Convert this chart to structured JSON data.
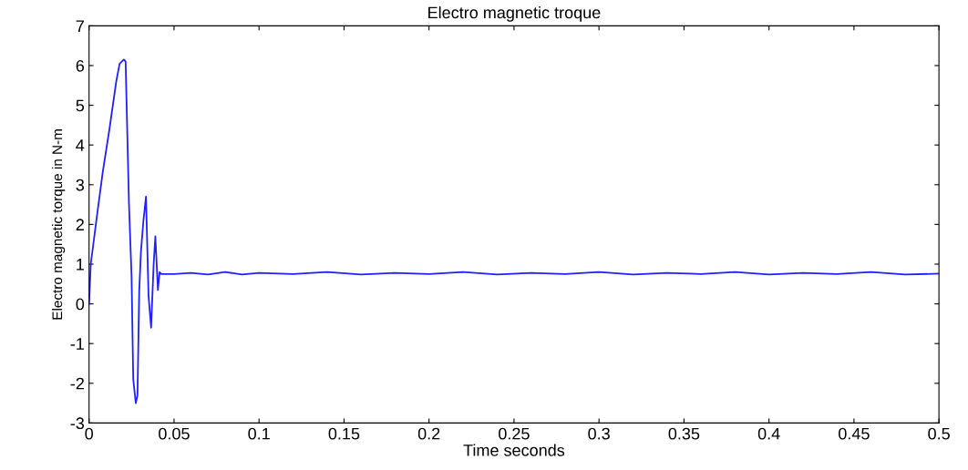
{
  "chart_data": {
    "type": "line",
    "title": "Electro magnetic troque",
    "xlabel": "Time seconds",
    "ylabel": "Electro magnetic torque in N-m",
    "xlim": [
      0,
      0.5
    ],
    "ylim": [
      -3,
      7
    ],
    "xticks": [
      0,
      0.05,
      0.1,
      0.15,
      0.2,
      0.25,
      0.3,
      0.35,
      0.4,
      0.45,
      0.5
    ],
    "yticks": [
      -3,
      -2,
      -1,
      0,
      1,
      2,
      3,
      4,
      5,
      6,
      7
    ],
    "marker": "none",
    "line_style": "solid",
    "series": [
      {
        "color": "#1f1fff",
        "x": [
          0,
          0.001,
          0.004,
          0.008,
          0.012,
          0.016,
          0.018,
          0.0205,
          0.0215,
          0.0235,
          0.025,
          0.026,
          0.0275,
          0.0285,
          0.0295,
          0.0305,
          0.032,
          0.0335,
          0.035,
          0.0365,
          0.038,
          0.039,
          0.0405,
          0.0415,
          0.0425,
          0.05,
          0.06,
          0.07,
          0.08,
          0.09,
          0.1,
          0.12,
          0.14,
          0.16,
          0.18,
          0.2,
          0.22,
          0.24,
          0.26,
          0.28,
          0.3,
          0.32,
          0.34,
          0.36,
          0.38,
          0.4,
          0.42,
          0.44,
          0.46,
          0.48,
          0.5
        ],
        "values": [
          0,
          1.0,
          2.0,
          3.3,
          4.4,
          5.6,
          6.05,
          6.15,
          6.1,
          2.5,
          0.7,
          -1.9,
          -2.5,
          -2.3,
          0.3,
          1.3,
          2.1,
          2.7,
          0.2,
          -0.6,
          1.0,
          1.7,
          0.35,
          0.8,
          0.75,
          0.75,
          0.78,
          0.74,
          0.8,
          0.74,
          0.78,
          0.75,
          0.8,
          0.74,
          0.78,
          0.75,
          0.8,
          0.74,
          0.78,
          0.75,
          0.8,
          0.74,
          0.78,
          0.75,
          0.8,
          0.74,
          0.78,
          0.75,
          0.8,
          0.74,
          0.76
        ]
      }
    ]
  }
}
